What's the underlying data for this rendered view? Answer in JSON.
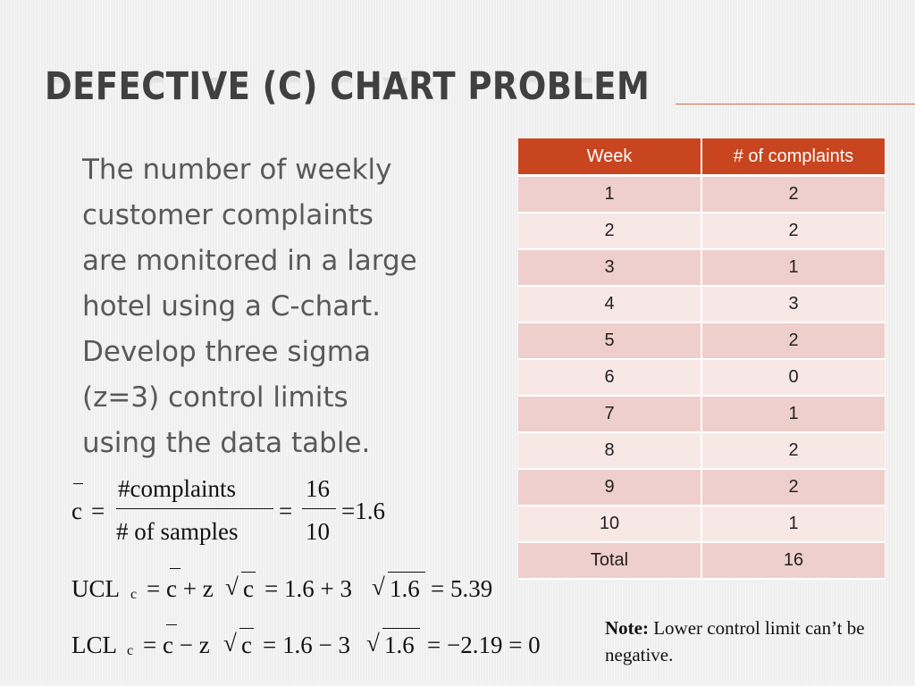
{
  "slide": {
    "title": "DEFECTIVE (C) CHART PROBLEM",
    "body_lines": [
      "The number of weekly",
      "customer complaints",
      "are monitored in a large",
      "hotel using a C-chart.",
      "Develop three sigma",
      "(z=3) control limits",
      "using the data table."
    ]
  },
  "table": {
    "headers": [
      "Week",
      "# of complaints"
    ],
    "rows": [
      [
        "1",
        "2"
      ],
      [
        "2",
        "2"
      ],
      [
        "3",
        "1"
      ],
      [
        "4",
        "3"
      ],
      [
        "5",
        "2"
      ],
      [
        "6",
        "0"
      ],
      [
        "7",
        "1"
      ],
      [
        "8",
        "2"
      ],
      [
        "9",
        "2"
      ],
      [
        "10",
        "1"
      ]
    ],
    "total_label": "Total",
    "total_value": "16"
  },
  "formulas": {
    "cbar": {
      "lhs": "c",
      "eq1": "=",
      "numerator": "#complaints",
      "denominator": "# of samples",
      "eq2": "=",
      "num2": "16",
      "den2": "10",
      "result": "=1.6"
    },
    "ucl": {
      "label": "UCL",
      "sub": "c",
      "expr_a": "= c + z",
      "sqrt_arg": "c",
      "expr_b": "= 1.6 + 3",
      "sqrt_arg2": "1.6",
      "result": "= 5.39"
    },
    "lcl": {
      "label": "LCL",
      "sub": "c",
      "expr_a": "= c − z",
      "sqrt_arg": "c",
      "expr_b": "= 1.6 − 3",
      "sqrt_arg2": "1.6",
      "result": "= −2.19 = 0"
    }
  },
  "note": {
    "label": "Note:",
    "text": " Lower control limit can’t be negative."
  },
  "colors": {
    "accent": "#c8451f",
    "row_odd": "#efcfcb",
    "row_even": "#f7e8e6",
    "title": "#404040",
    "body": "#595959"
  }
}
